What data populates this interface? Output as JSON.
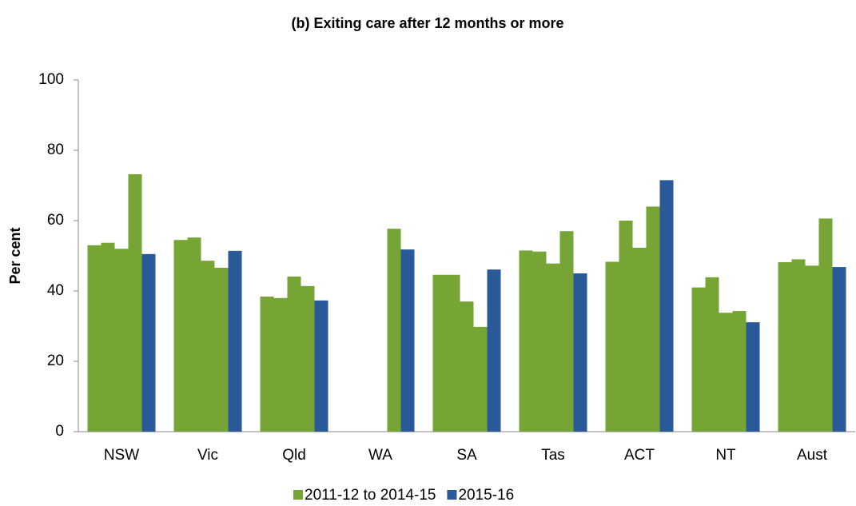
{
  "chart_data": {
    "type": "bar",
    "title": "(b) Exiting care after 12 months or more",
    "y_label": "Per cent",
    "categories": [
      "NSW",
      "Vic",
      "Qld",
      "WA",
      "SA",
      "Tas",
      "ACT",
      "NT",
      "Aust"
    ],
    "series": [
      {
        "name": "2011-12 to 2014-15",
        "color": "#76a535",
        "values": [
          [
            53,
            53.7,
            52,
            73.2
          ],
          [
            54.5,
            55.2,
            48.6,
            46.6
          ],
          [
            38.4,
            38,
            44.1,
            41.4
          ],
          [
            null,
            null,
            null,
            57.7
          ],
          [
            44.6,
            44.6,
            37,
            29.8
          ],
          [
            51.5,
            51.2,
            47.8,
            57
          ],
          [
            48.3,
            60,
            52.3,
            64
          ],
          [
            41,
            43.9,
            33.8,
            34.3
          ],
          [
            48.2,
            49,
            47.2,
            60.6
          ]
        ]
      },
      {
        "name": "2015-16",
        "color": "#2a5a9a",
        "values": [
          50.5,
          51.4,
          37.3,
          51.8,
          46.1,
          45,
          71.5,
          31.1,
          46.8
        ]
      }
    ],
    "ylim": [
      0,
      100
    ],
    "yticks": [
      0,
      20,
      40,
      60,
      80,
      100
    ],
    "grid": false,
    "legend": "bottom"
  }
}
